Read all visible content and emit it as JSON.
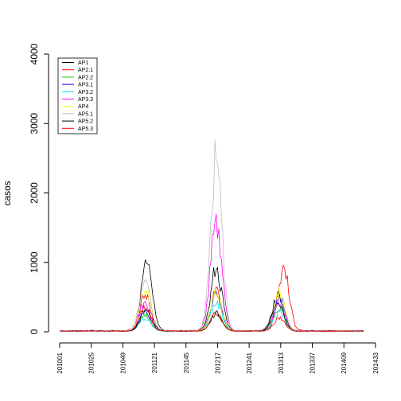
{
  "chart_data": {
    "type": "line",
    "ylabel": "casos",
    "xlabel": "",
    "ylim": [
      0,
      4000
    ],
    "yticks": [
      0,
      1000,
      2000,
      3000,
      4000
    ],
    "xlim_index": [
      0,
      230
    ],
    "xticks": [
      {
        "label": "201001",
        "index": 0
      },
      {
        "label": "201025",
        "index": 24
      },
      {
        "label": "201049",
        "index": 48
      },
      {
        "label": "201121",
        "index": 72
      },
      {
        "label": "201145",
        "index": 96
      },
      {
        "label": "201217",
        "index": 120
      },
      {
        "label": "201241",
        "index": 144
      },
      {
        "label": "201313",
        "index": 168
      },
      {
        "label": "201337",
        "index": 192
      },
      {
        "label": "201409",
        "index": 216
      },
      {
        "label": "201433",
        "index": 240
      }
    ],
    "grid": false,
    "legend_position": "top-left",
    "series": [
      {
        "name": "AP1",
        "color": "#000000",
        "peaks": [
          [
            66,
            1000
          ],
          [
            119,
            950
          ],
          [
            166,
            550
          ]
        ],
        "base": 15
      },
      {
        "name": "AP2.1",
        "color": "#ff0000",
        "peaks": [
          [
            65,
            550
          ],
          [
            119,
            600
          ],
          [
            170,
            960
          ]
        ],
        "base": 15
      },
      {
        "name": "AP2.2",
        "color": "#00cd00",
        "peaks": [
          [
            65,
            250
          ],
          [
            119,
            280
          ],
          [
            167,
            350
          ]
        ],
        "base": 10
      },
      {
        "name": "AP3.1",
        "color": "#0000ff",
        "peaks": [
          [
            65,
            300
          ],
          [
            119,
            560
          ],
          [
            167,
            500
          ]
        ],
        "base": 12
      },
      {
        "name": "AP3.2",
        "color": "#00e5ee",
        "peaks": [
          [
            65,
            200
          ],
          [
            119,
            450
          ],
          [
            167,
            300
          ]
        ],
        "base": 10
      },
      {
        "name": "AP3.3",
        "color": "#ff00ff",
        "peaks": [
          [
            64,
            420
          ],
          [
            119,
            1730
          ],
          [
            167,
            420
          ]
        ],
        "base": 15
      },
      {
        "name": "AP4",
        "color": "#ffff00",
        "peaks": [
          [
            65,
            650
          ],
          [
            119,
            620
          ],
          [
            167,
            600
          ]
        ],
        "base": 12
      },
      {
        "name": "AP5.1",
        "color": "#bebebe",
        "peaks": [
          [
            65,
            700
          ],
          [
            119,
            2620
          ],
          [
            167,
            500
          ]
        ],
        "base": 15
      },
      {
        "name": "AP5.2",
        "color": "#000000",
        "peaks": [
          [
            66,
            350
          ],
          [
            119,
            280
          ],
          [
            166,
            430
          ]
        ],
        "base": 10
      },
      {
        "name": "AP5.3",
        "color": "#ff0000",
        "peaks": [
          [
            65,
            370
          ],
          [
            119,
            280
          ],
          [
            167,
            200
          ]
        ],
        "base": 10
      }
    ]
  }
}
